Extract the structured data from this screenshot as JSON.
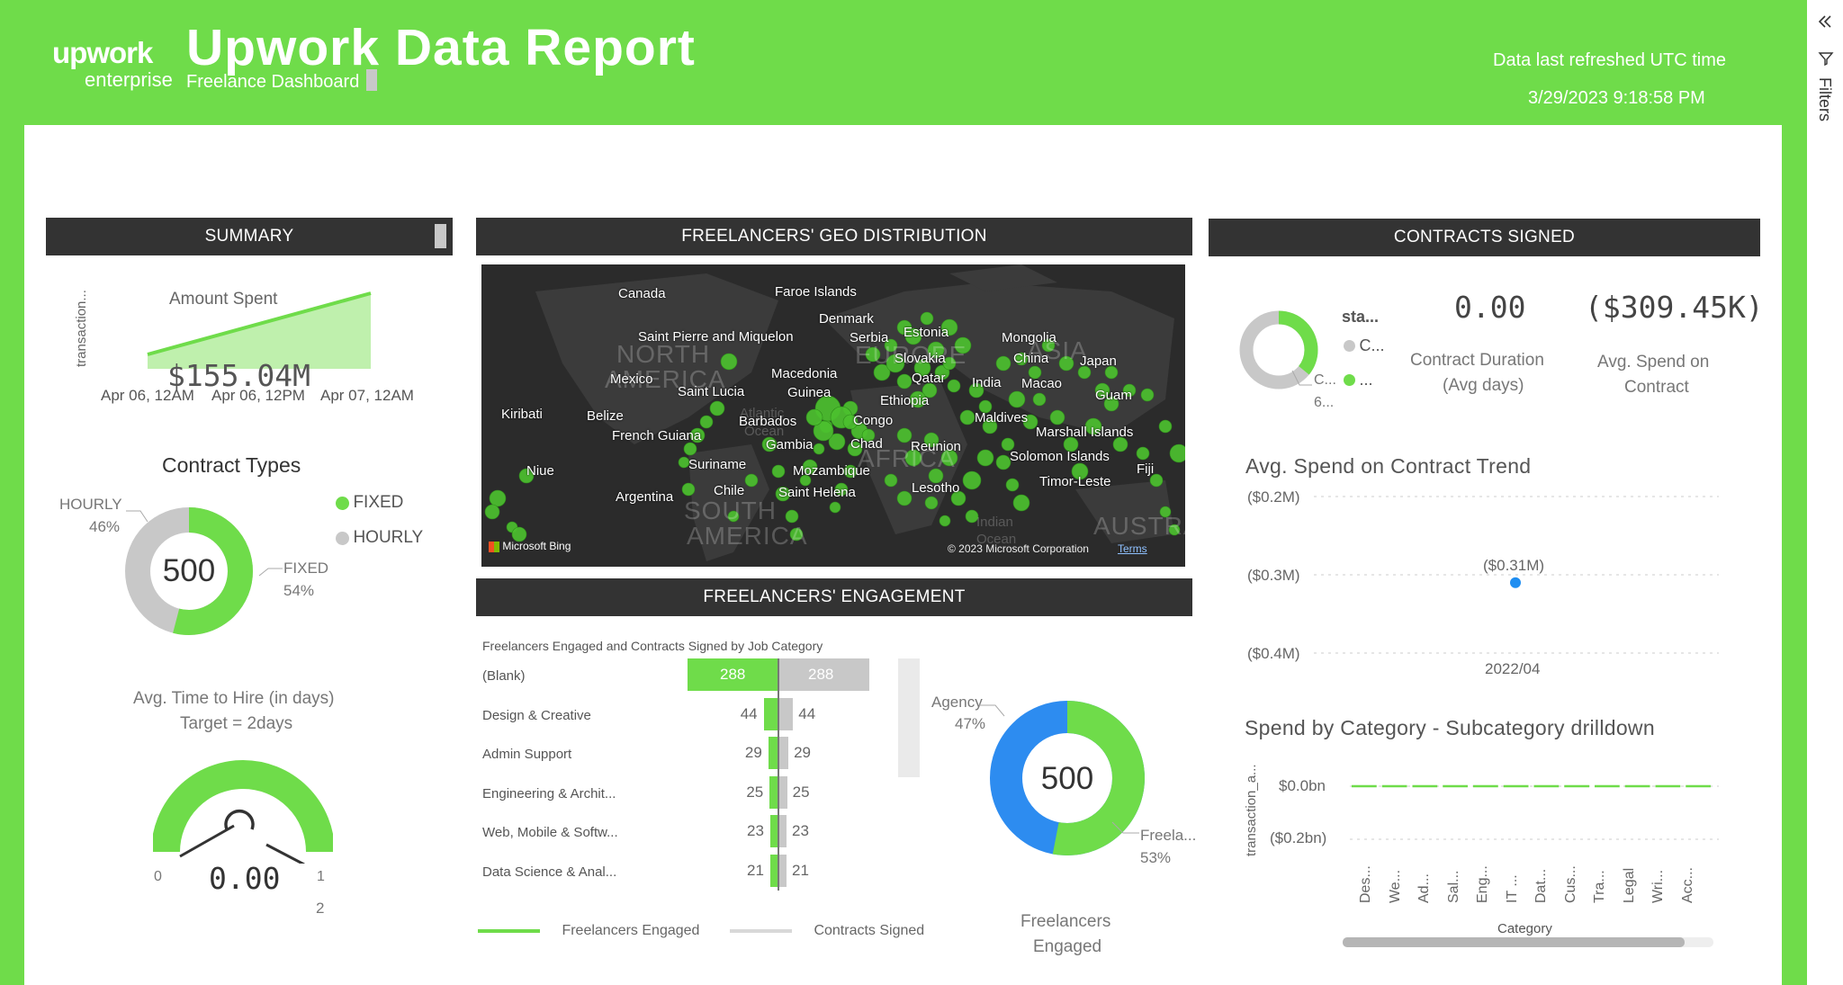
{
  "header": {
    "logo_top": "upwork",
    "logo_bottom": "enterprise",
    "title": "Upwork Data Report",
    "subtitle": "Freelance Dashboard",
    "refresh_label": "Data last refreshed UTC time",
    "refresh_time": "3/29/2023 9:18:58 PM",
    "accent_color": "#6fdc4a"
  },
  "filters": {
    "label": "Filters",
    "collapse_icon": "double-chevron-left-icon",
    "filter_icon": "funnel-icon"
  },
  "summary": {
    "title": "SUMMARY",
    "amount_spent": {
      "title": "Amount Spent",
      "ylabel": "transaction...",
      "value": "$155.04M",
      "x_ticks": [
        "Apr 06, 12AM",
        "Apr 06, 12PM",
        "Apr 07, 12AM"
      ]
    },
    "contract_types": {
      "title": "Contract Types",
      "total": "500",
      "slices": [
        {
          "name": "FIXED",
          "pct": "54%",
          "fraction": 0.54,
          "color": "#6fdc4a"
        },
        {
          "name": "HOURLY",
          "pct": "46%",
          "fraction": 0.46,
          "color": "#c8c8c8"
        }
      ],
      "legend": [
        "FIXED",
        "HOURLY"
      ]
    },
    "time_to_hire": {
      "title": "Avg. Time to Hire (in days)",
      "target": "Target = 2days",
      "value": "0.00",
      "min": "0",
      "mark": "1",
      "max": "2"
    }
  },
  "geo": {
    "title": "FREELANCERS' GEO DISTRIBUTION",
    "bing": "Microsoft Bing",
    "copyright": "© 2023 Microsoft Corporation",
    "terms": "Terms",
    "region_labels": [
      "NORTH",
      "AMERICA",
      "EUROPE",
      "ASIA",
      "AFRICA",
      "SOUTH",
      "AMERICA",
      "AUSTRALI"
    ],
    "ocean_labels": [
      "Atlantic",
      "Ocean",
      "Indian",
      "Ocean"
    ],
    "countries": [
      "Canada",
      "Faroe Islands",
      "Denmark",
      "Saint Pierre and Miquelon",
      "Serbia",
      "Estonia",
      "Mongolia",
      "Slovakia",
      "China",
      "Japan",
      "Macedonia",
      "Mexico",
      "Qatar",
      "India",
      "Macao",
      "Saint Lucia",
      "Guinea",
      "Guam",
      "Ethiopia",
      "Kiribati",
      "Belize",
      "Barbados",
      "Congo",
      "Maldives",
      "French Guiana",
      "Marshall Islands",
      "Gambia",
      "Chad",
      "Reunion",
      "Solomon Islands",
      "Suriname",
      "Niue",
      "Mozambique",
      "Fiji",
      "Timor-Leste",
      "Chile",
      "Saint Helena",
      "Lesotho",
      "Argentina"
    ]
  },
  "engagement": {
    "title": "FREELANCERS' ENGAGEMENT",
    "chart_title": "Freelancers Engaged and Contracts Signed by Job Category",
    "legend": [
      "Freelancers Engaged",
      "Contracts Signed"
    ],
    "donut": {
      "total": "500",
      "agency_label": "Agency",
      "agency_pct": "47%",
      "free_label": "Freela...",
      "free_pct": "53%",
      "caption_1": "Freelancers",
      "caption_2": "Engaged"
    }
  },
  "chart_data": [
    {
      "type": "bar",
      "title": "Freelancers Engaged and Contracts Signed by Job Category",
      "categories": [
        "(Blank)",
        "Design & Creative",
        "Admin Support",
        "Engineering & Archit...",
        "Web, Mobile & Softw...",
        "Data Science & Anal..."
      ],
      "series": [
        {
          "name": "Freelancers Engaged",
          "values": [
            288,
            44,
            29,
            25,
            23,
            21
          ]
        },
        {
          "name": "Contracts Signed",
          "values": [
            288,
            44,
            29,
            25,
            23,
            21
          ]
        }
      ]
    },
    {
      "type": "pie",
      "categories": [
        "Agency",
        "Freela..."
      ],
      "values": [
        47,
        53
      ],
      "total": 500
    },
    {
      "type": "pie",
      "title": "Contract Types",
      "categories": [
        "FIXED",
        "HOURLY"
      ],
      "values": [
        54,
        46
      ],
      "total": 500
    },
    {
      "type": "area",
      "title": "Amount Spent",
      "ylabel": "transaction...",
      "x": [
        "Apr 06, 12AM",
        "Apr 06, 12PM",
        "Apr 07, 12AM"
      ]
    },
    {
      "type": "scatter",
      "title": "Avg. Spend on Contract Trend",
      "x": [
        "2022/04"
      ],
      "values": [
        -0.31
      ],
      "point_label": "($0.31M)",
      "y_ticks": [
        "($0.2M)",
        "($0.3M)",
        "($0.4M)"
      ]
    },
    {
      "type": "line",
      "title": "Spend by Category - Subcategory drilldown",
      "ylabel": "transaction_a...",
      "xlabel": "Category",
      "y_ticks": [
        "$0.0bn",
        "($0.2bn)"
      ],
      "categories": [
        "Des...",
        "We...",
        "Ad...",
        "Sal...",
        "Eng...",
        "IT ...",
        "Dat...",
        "Cus...",
        "Tra...",
        "Legal",
        "Wri...",
        "Acc..."
      ],
      "values": [
        0,
        0,
        0,
        0,
        0,
        0,
        0,
        0,
        0,
        0,
        0,
        0
      ]
    }
  ],
  "contracts": {
    "title": "CONTRACTS SIGNED",
    "legend_title": "sta...",
    "legend_items": [
      "C...",
      "..."
    ],
    "donut_label_1": "C...",
    "donut_label_2": "6...",
    "duration_value": "0.00",
    "duration_label_1": "Contract Duration",
    "duration_label_2": "(Avg days)",
    "spend_value": "($309.45K)",
    "spend_label_1": "Avg. Spend on",
    "spend_label_2": "Contract",
    "trend_title": "Avg. Spend on Contract Trend",
    "category_title": "Spend by Category - Subcategory drilldown"
  }
}
